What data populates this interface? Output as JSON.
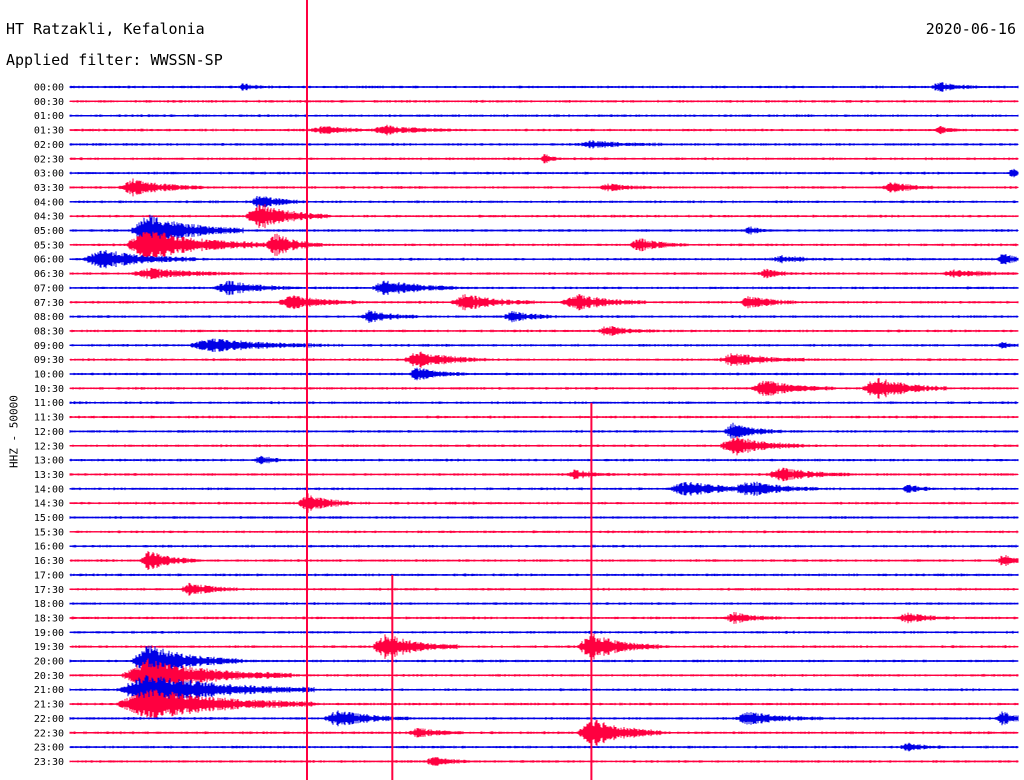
{
  "header": {
    "title": "HT Ratzakli, Kefalonia",
    "filter": "Applied filter: WWSSN-SP",
    "date": "2020-06-16"
  },
  "colors": {
    "odd_trace": "#0000e6",
    "even_trace": "#ff0040",
    "label": "#000000"
  },
  "chart_data": {
    "type": "line",
    "title": "HT Ratzakli, Kefalonia",
    "subtitle": "Applied filter: WWSSN-SP",
    "ylabel": "HHZ - 50000",
    "rows": [
      "00:00",
      "00:30",
      "01:00",
      "01:30",
      "02:00",
      "02:30",
      "03:00",
      "03:30",
      "04:00",
      "04:30",
      "05:00",
      "05:30",
      "06:00",
      "06:30",
      "07:00",
      "07:30",
      "08:00",
      "08:30",
      "09:00",
      "09:30",
      "10:00",
      "10:30",
      "11:00",
      "11:30",
      "12:00",
      "12:30",
      "13:00",
      "13:30",
      "14:00",
      "14:30",
      "15:00",
      "15:30",
      "16:00",
      "16:30",
      "17:00",
      "17:30",
      "18:00",
      "18:30",
      "19:00",
      "19:30",
      "20:00",
      "20:30",
      "21:00",
      "21:30",
      "22:00",
      "22:30",
      "23:00",
      "23:30"
    ],
    "events": [
      {
        "row": 0,
        "minute": 5.5,
        "amp": 1.0,
        "dur": 0.6
      },
      {
        "row": 0,
        "minute": 27.5,
        "amp": 1.5,
        "dur": 0.8
      },
      {
        "row": 3,
        "minute": 8.0,
        "amp": 1.0,
        "dur": 1.5
      },
      {
        "row": 3,
        "minute": 10.0,
        "amp": 1.2,
        "dur": 1.5
      },
      {
        "row": 3,
        "minute": 27.5,
        "amp": 1.0,
        "dur": 0.5
      },
      {
        "row": 4,
        "minute": 16.5,
        "amp": 1.0,
        "dur": 1.5
      },
      {
        "row": 5,
        "minute": 15.0,
        "amp": 2.0,
        "dur": 0.3
      },
      {
        "row": 6,
        "minute": 29.8,
        "amp": 1.2,
        "dur": 0.4
      },
      {
        "row": 7,
        "minute": 2.0,
        "amp": 2.5,
        "dur": 1.5
      },
      {
        "row": 7,
        "minute": 26.0,
        "amp": 1.5,
        "dur": 1.0
      },
      {
        "row": 7,
        "minute": 17.0,
        "amp": 1.0,
        "dur": 1.0
      },
      {
        "row": 8,
        "minute": 6.0,
        "amp": 2.0,
        "dur": 1.0
      },
      {
        "row": 9,
        "minute": 6.0,
        "amp": 4.0,
        "dur": 1.5
      },
      {
        "row": 10,
        "minute": 2.5,
        "amp": 5.0,
        "dur": 2.0
      },
      {
        "row": 10,
        "minute": 21.5,
        "amp": 1.2,
        "dur": 0.5
      },
      {
        "row": 11,
        "minute": 2.5,
        "amp": 5.0,
        "dur": 2.5
      },
      {
        "row": 11,
        "minute": 6.5,
        "amp": 3.5,
        "dur": 1.0
      },
      {
        "row": 11,
        "minute": 18.0,
        "amp": 2.0,
        "dur": 1.0
      },
      {
        "row": 12,
        "minute": 1.0,
        "amp": 3.0,
        "dur": 2.0
      },
      {
        "row": 12,
        "minute": 22.5,
        "amp": 1.0,
        "dur": 1.0
      },
      {
        "row": 12,
        "minute": 29.5,
        "amp": 2.0,
        "dur": 0.5
      },
      {
        "row": 13,
        "minute": 2.5,
        "amp": 1.5,
        "dur": 2.0
      },
      {
        "row": 13,
        "minute": 22.0,
        "amp": 1.2,
        "dur": 0.8
      },
      {
        "row": 13,
        "minute": 28.0,
        "amp": 1.0,
        "dur": 1.5
      },
      {
        "row": 14,
        "minute": 5.0,
        "amp": 2.0,
        "dur": 1.5
      },
      {
        "row": 14,
        "minute": 10.0,
        "amp": 2.5,
        "dur": 1.5
      },
      {
        "row": 15,
        "minute": 7.0,
        "amp": 2.0,
        "dur": 1.5
      },
      {
        "row": 15,
        "minute": 12.5,
        "amp": 2.5,
        "dur": 1.5
      },
      {
        "row": 15,
        "minute": 16.0,
        "amp": 2.5,
        "dur": 1.5
      },
      {
        "row": 15,
        "minute": 21.5,
        "amp": 2.0,
        "dur": 1.0
      },
      {
        "row": 16,
        "minute": 9.5,
        "amp": 2.0,
        "dur": 1.0
      },
      {
        "row": 16,
        "minute": 14.0,
        "amp": 1.5,
        "dur": 1.0
      },
      {
        "row": 17,
        "minute": 17.0,
        "amp": 1.5,
        "dur": 1.0
      },
      {
        "row": 18,
        "minute": 4.5,
        "amp": 2.0,
        "dur": 2.5
      },
      {
        "row": 18,
        "minute": 29.5,
        "amp": 1.0,
        "dur": 0.5
      },
      {
        "row": 19,
        "minute": 11.0,
        "amp": 2.5,
        "dur": 1.5
      },
      {
        "row": 19,
        "minute": 21.0,
        "amp": 2.0,
        "dur": 1.5
      },
      {
        "row": 20,
        "minute": 11.0,
        "amp": 2.0,
        "dur": 1.0
      },
      {
        "row": 21,
        "minute": 22.0,
        "amp": 2.5,
        "dur": 1.5
      },
      {
        "row": 21,
        "minute": 25.5,
        "amp": 3.5,
        "dur": 1.5
      },
      {
        "row": 24,
        "minute": 21.0,
        "amp": 2.5,
        "dur": 1.0
      },
      {
        "row": 25,
        "minute": 21.0,
        "amp": 3.0,
        "dur": 1.5
      },
      {
        "row": 26,
        "minute": 6.0,
        "amp": 1.5,
        "dur": 0.5
      },
      {
        "row": 27,
        "minute": 16.0,
        "amp": 1.5,
        "dur": 0.8
      },
      {
        "row": 27,
        "minute": 22.5,
        "amp": 2.0,
        "dur": 1.5
      },
      {
        "row": 28,
        "minute": 19.5,
        "amp": 2.0,
        "dur": 2.0
      },
      {
        "row": 28,
        "minute": 21.5,
        "amp": 2.0,
        "dur": 1.5
      },
      {
        "row": 28,
        "minute": 26.5,
        "amp": 1.5,
        "dur": 0.5
      },
      {
        "row": 29,
        "minute": 7.5,
        "amp": 3.0,
        "dur": 1.0
      },
      {
        "row": 33,
        "minute": 2.5,
        "amp": 3.0,
        "dur": 1.0
      },
      {
        "row": 33,
        "minute": 29.5,
        "amp": 2.0,
        "dur": 0.5
      },
      {
        "row": 35,
        "minute": 3.8,
        "amp": 2.0,
        "dur": 1.0
      },
      {
        "row": 37,
        "minute": 21.0,
        "amp": 1.5,
        "dur": 1.0
      },
      {
        "row": 37,
        "minute": 26.5,
        "amp": 1.5,
        "dur": 1.0
      },
      {
        "row": 39,
        "minute": 10.0,
        "amp": 4.0,
        "dur": 1.5
      },
      {
        "row": 39,
        "minute": 16.5,
        "amp": 4.0,
        "dur": 1.5
      },
      {
        "row": 40,
        "minute": 2.5,
        "amp": 5.0,
        "dur": 2.0
      },
      {
        "row": 41,
        "minute": 2.5,
        "amp": 5.0,
        "dur": 3.0
      },
      {
        "row": 42,
        "minute": 2.5,
        "amp": 5.0,
        "dur": 3.5
      },
      {
        "row": 43,
        "minute": 2.5,
        "amp": 5.0,
        "dur": 3.5
      },
      {
        "row": 44,
        "minute": 8.5,
        "amp": 2.5,
        "dur": 1.5
      },
      {
        "row": 44,
        "minute": 21.5,
        "amp": 2.0,
        "dur": 1.5
      },
      {
        "row": 44,
        "minute": 29.5,
        "amp": 2.0,
        "dur": 0.8
      },
      {
        "row": 45,
        "minute": 11.0,
        "amp": 1.5,
        "dur": 1.0
      },
      {
        "row": 45,
        "minute": 16.5,
        "amp": 5.0,
        "dur": 1.5
      },
      {
        "row": 46,
        "minute": 26.5,
        "amp": 1.2,
        "dur": 0.8
      },
      {
        "row": 47,
        "minute": 11.5,
        "amp": 1.2,
        "dur": 1.0
      }
    ],
    "spikes": [
      {
        "minute": 7.5,
        "from_row": 0,
        "to_row": 47
      },
      {
        "minute": 10.2,
        "from_row": 34,
        "to_row": 47
      },
      {
        "minute": 16.5,
        "from_row": 22,
        "to_row": 47
      }
    ]
  }
}
